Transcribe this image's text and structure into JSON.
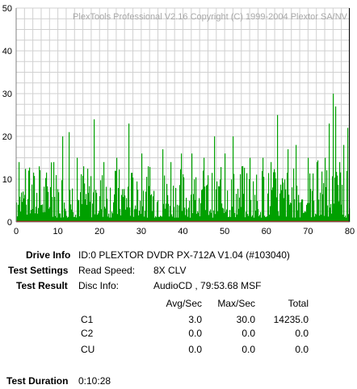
{
  "chart_data": {
    "type": "bar",
    "title": "",
    "watermark": "PlexTools Professional V2.16 Copyright (C) 1999-2004 Plextor SA/NV",
    "xlabel": "",
    "ylabel": "",
    "xlim": [
      0,
      80
    ],
    "ylim": [
      0,
      50
    ],
    "x_ticks": [
      "0",
      "10",
      "20",
      "30",
      "40",
      "50",
      "60",
      "70",
      "80"
    ],
    "y_ticks": [
      "0",
      "10",
      "20",
      "30",
      "40",
      "50"
    ],
    "grid": true,
    "end_marker_x": 79.9,
    "series": [
      {
        "name": "C1",
        "color": "#00a000",
        "seed": 7,
        "x_end": 79.9,
        "base_range": [
          1,
          13
        ],
        "spikes": [
          {
            "x": 0.5,
            "y": 14
          },
          {
            "x": 3,
            "y": 12
          },
          {
            "x": 5.5,
            "y": 13
          },
          {
            "x": 9,
            "y": 14
          },
          {
            "x": 11,
            "y": 20
          },
          {
            "x": 12.5,
            "y": 21
          },
          {
            "x": 14.5,
            "y": 15
          },
          {
            "x": 16,
            "y": 13
          },
          {
            "x": 18.5,
            "y": 24
          },
          {
            "x": 21,
            "y": 14
          },
          {
            "x": 24,
            "y": 15
          },
          {
            "x": 27,
            "y": 23
          },
          {
            "x": 30,
            "y": 16
          },
          {
            "x": 31.5,
            "y": 13
          },
          {
            "x": 35,
            "y": 17
          },
          {
            "x": 37,
            "y": 14
          },
          {
            "x": 39.5,
            "y": 16
          },
          {
            "x": 42,
            "y": 16
          },
          {
            "x": 45,
            "y": 15
          },
          {
            "x": 47.5,
            "y": 20
          },
          {
            "x": 50,
            "y": 16
          },
          {
            "x": 52,
            "y": 20
          },
          {
            "x": 54,
            "y": 13
          },
          {
            "x": 56,
            "y": 15
          },
          {
            "x": 59,
            "y": 15
          },
          {
            "x": 61,
            "y": 14
          },
          {
            "x": 62.5,
            "y": 25
          },
          {
            "x": 65,
            "y": 17
          },
          {
            "x": 67,
            "y": 18
          },
          {
            "x": 70,
            "y": 15
          },
          {
            "x": 72,
            "y": 14
          },
          {
            "x": 74,
            "y": 15
          },
          {
            "x": 75,
            "y": 23
          },
          {
            "x": 76,
            "y": 30
          },
          {
            "x": 76.6,
            "y": 27
          },
          {
            "x": 77.5,
            "y": 14
          },
          {
            "x": 78.5,
            "y": 18
          },
          {
            "x": 79.5,
            "y": 22
          }
        ]
      },
      {
        "name": "C2",
        "color": "#c00000",
        "values": [
          0
        ]
      }
    ]
  },
  "info": {
    "drive_label": "Drive Info",
    "drive_value": "ID:0 PLEXTOR DVDR PX-712A V1.04 (#103040)",
    "settings_label": "Test Settings",
    "read_speed_label": "Read Speed:",
    "read_speed_value": "8X CLV",
    "result_label": "Test Result",
    "disc_info_label": "Disc Info:",
    "disc_info_value": "AudioCD , 79:53.68 MSF",
    "columns": [
      "Avg/Sec",
      "Max/Sec",
      "Total"
    ],
    "rows": [
      {
        "name": "C1",
        "avg": "3.0",
        "max": "30.0",
        "total": "14235.0"
      },
      {
        "name": "C2",
        "avg": "0.0",
        "max": "0.0",
        "total": "0.0"
      },
      {
        "name": "CU",
        "avg": "0.0",
        "max": "0.0",
        "total": "0.0"
      }
    ],
    "duration_label": "Test Duration",
    "duration_value": "0:10:28"
  }
}
